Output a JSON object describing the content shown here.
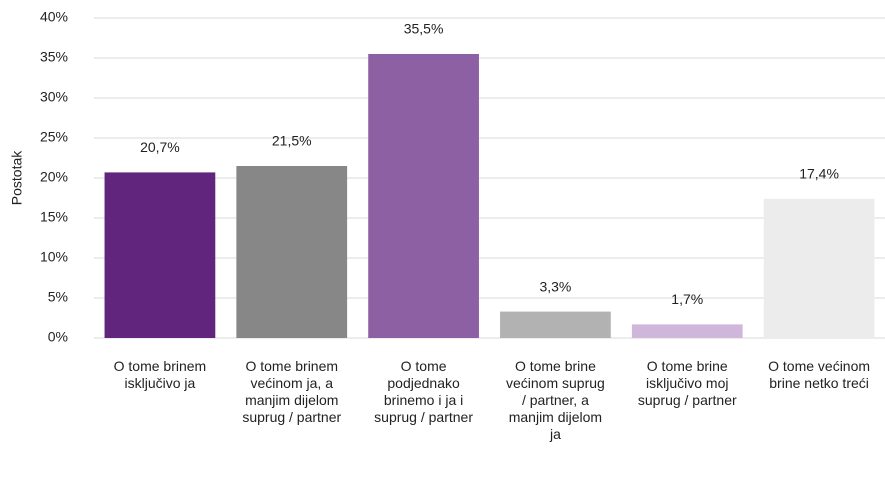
{
  "chart_data": {
    "type": "bar",
    "y_label": "Postotak",
    "categories": [
      "O tome brinem isključivo ja",
      "O tome brinem većinom ja, a manjim dijelom suprug / partner",
      "O tome podjednako brinemo i ja i suprug / partner",
      "O tome brine većinom suprug / partner, a manjim dijelom ja",
      "O tome brine isključivo moj suprug / partner",
      "O tome većinom brine netko treći"
    ],
    "values": [
      20.7,
      21.5,
      35.5,
      3.3,
      1.7,
      17.4
    ],
    "value_labels": [
      "20,7%",
      "21,5%",
      "35,5%",
      "3,3%",
      "1,7%",
      "17,4%"
    ],
    "colors": [
      "#62257d",
      "#878787",
      "#8d60a4",
      "#b2b2b2",
      "#cfb6db",
      "#ececec"
    ],
    "ylim": [
      0,
      40
    ],
    "yticks": [
      {
        "value": 0,
        "label": "0%"
      },
      {
        "value": 5,
        "label": "5%"
      },
      {
        "value": 10,
        "label": "10%"
      },
      {
        "value": 15,
        "label": "15%"
      },
      {
        "value": 20,
        "label": "20%"
      },
      {
        "value": 25,
        "label": "25%"
      },
      {
        "value": 30,
        "label": "30%"
      },
      {
        "value": 35,
        "label": "35%"
      },
      {
        "value": 40,
        "label": "40%"
      }
    ],
    "grid": true
  }
}
